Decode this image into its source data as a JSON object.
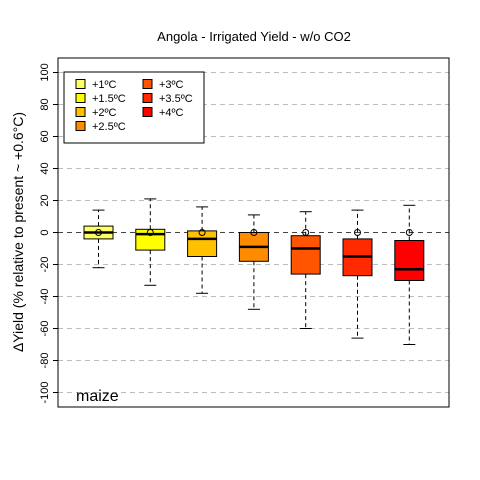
{
  "chart_data": {
    "type": "boxplot",
    "title": "Angola - Irrigated Yield - w/o CO2",
    "ylabel": "ΔYield (% relative to present ~ +0.6°C)",
    "xlabel": "",
    "annotation": "maize",
    "ylim": [
      -105,
      107
    ],
    "yticks": [
      -100,
      -80,
      -60,
      -40,
      -20,
      0,
      20,
      40,
      60,
      80,
      100
    ],
    "ytick_labels": [
      "-100",
      "-80",
      "-60",
      "-40",
      "-20",
      "0",
      "20",
      "40",
      "60",
      "80",
      "100"
    ],
    "grid": "horizontal dashed",
    "reference_line": 0,
    "legend_position": "top-left",
    "series": [
      {
        "name": "+1ºC",
        "color": "#FFFF66",
        "whisker_low": -22,
        "q1": -4,
        "median": 0,
        "q3": 4,
        "whisker_high": 14,
        "mean": 0
      },
      {
        "name": "+1.5ºC",
        "color": "#FFFF00",
        "whisker_low": -33,
        "q1": -11,
        "median": -1,
        "q3": 2,
        "whisker_high": 21,
        "mean": 0
      },
      {
        "name": "+2ºC",
        "color": "#FFC000",
        "whisker_low": -38,
        "q1": -15,
        "median": -4,
        "q3": 1,
        "whisker_high": 16,
        "mean": 0
      },
      {
        "name": "+2.5ºC",
        "color": "#FF8C00",
        "whisker_low": -48,
        "q1": -18,
        "median": -9,
        "q3": 0,
        "whisker_high": 11,
        "mean": 0
      },
      {
        "name": "+3ºC",
        "color": "#FF5500",
        "whisker_low": -60,
        "q1": -26,
        "median": -10,
        "q3": -2,
        "whisker_high": 13,
        "mean": 0
      },
      {
        "name": "+3.5ºC",
        "color": "#FF2A00",
        "whisker_low": -66,
        "q1": -27,
        "median": -15,
        "q3": -4,
        "whisker_high": 14,
        "mean": 0
      },
      {
        "name": "+4ºC",
        "color": "#FF0000",
        "whisker_low": -70,
        "q1": -30,
        "median": -23,
        "q3": -5,
        "whisker_high": 17,
        "mean": 0
      }
    ]
  }
}
